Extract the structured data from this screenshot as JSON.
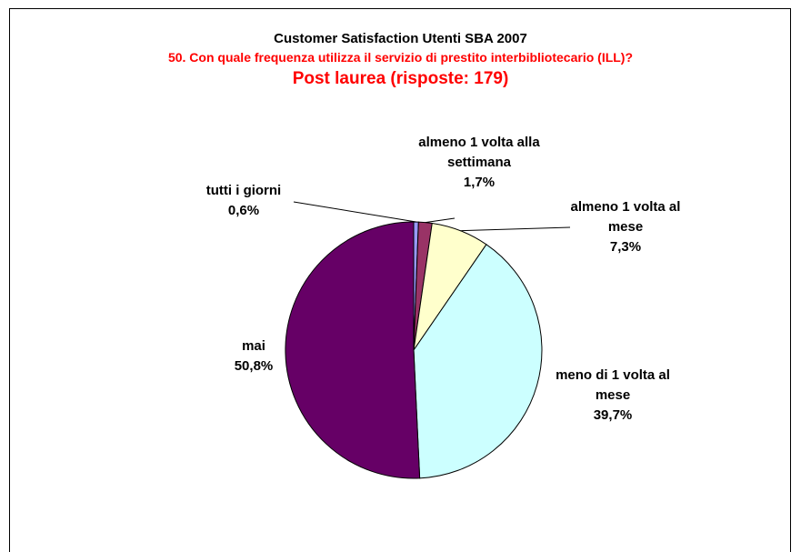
{
  "chart_data": {
    "type": "pie",
    "title": "Customer Satisfaction Utenti SBA 2007",
    "subtitle": "50. Con quale frequenza utilizza il servizio di prestito interbibliotecario (ILL)?",
    "subtitle2": "Post laurea (risposte: 179)",
    "title_colors": {
      "title": "#000000",
      "subtitle": "#ff0000",
      "subtitle2": "#ff0000"
    },
    "slices": [
      {
        "label_lines": [
          "tutti i giorni"
        ],
        "value_label": "0,6%",
        "value": 0.6,
        "color": "#9999ff"
      },
      {
        "label_lines": [
          "almeno 1 volta alla",
          "settimana"
        ],
        "value_label": "1,7%",
        "value": 1.7,
        "color": "#993366"
      },
      {
        "label_lines": [
          "almeno 1 volta al",
          "mese"
        ],
        "value_label": "7,3%",
        "value": 7.3,
        "color": "#ffffcc"
      },
      {
        "label_lines": [
          "meno di 1 volta al",
          "mese"
        ],
        "value_label": "39,7%",
        "value": 39.7,
        "color": "#ccffff"
      },
      {
        "label_lines": [
          "mai"
        ],
        "value_label": "50,8%",
        "value": 50.8,
        "color": "#660066"
      }
    ]
  }
}
